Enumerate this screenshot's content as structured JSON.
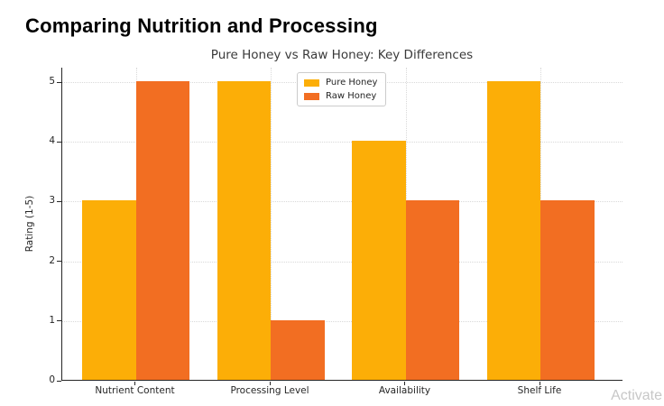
{
  "header": {
    "title": "Comparing Nutrition and Processing"
  },
  "chart_data": {
    "type": "bar",
    "title": "Pure Honey vs Raw Honey: Key Differences",
    "categories": [
      "Nutrient Content",
      "Processing Level",
      "Availability",
      "Shelf Life"
    ],
    "series": [
      {
        "name": "Pure Honey",
        "color": "#FCAE07",
        "values": [
          3,
          5,
          4,
          5
        ]
      },
      {
        "name": "Raw Honey",
        "color": "#F26E22",
        "values": [
          5,
          1,
          3,
          3
        ]
      }
    ],
    "xlabel": "",
    "ylabel": "Rating (1-5)",
    "ylim": [
      0,
      5
    ],
    "yticks": [
      0,
      1,
      2,
      3,
      4,
      5
    ],
    "grid": true,
    "legend_position": "top-center"
  },
  "watermark": {
    "text": "Activate"
  }
}
